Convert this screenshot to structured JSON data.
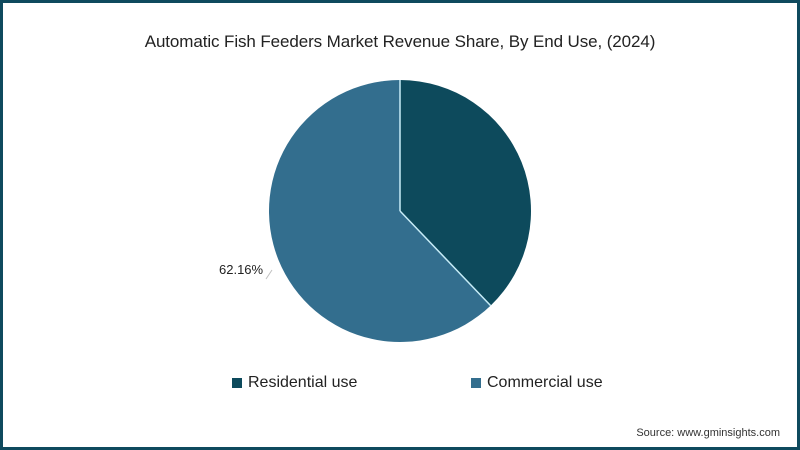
{
  "chart_data": {
    "type": "pie",
    "title": "Automatic Fish Feeders Market Revenue Share, By End Use, (2024)",
    "categories": [
      "Residential use",
      "Commercial use"
    ],
    "values": [
      37.84,
      62.16
    ],
    "data_labels": [
      "",
      "62.16%"
    ],
    "colors": [
      "#0d4a5c",
      "#336e8e"
    ],
    "legend_position": "bottom",
    "start_angle": 0,
    "direction": "clockwise"
  },
  "header": {
    "title": "Automatic Fish Feeders Market Revenue Share, By End Use, (2024)"
  },
  "labels": {
    "commercial_pct": "62.16%"
  },
  "legend": {
    "items": [
      {
        "label": "Residential use",
        "color": "#0d4a5c"
      },
      {
        "label": "Commercial use",
        "color": "#336e8e"
      }
    ]
  },
  "footer": {
    "source": "Source: www.gminsights.com"
  },
  "colors": {
    "border": "#0f4a5e",
    "divider": "#c7ecf7"
  }
}
